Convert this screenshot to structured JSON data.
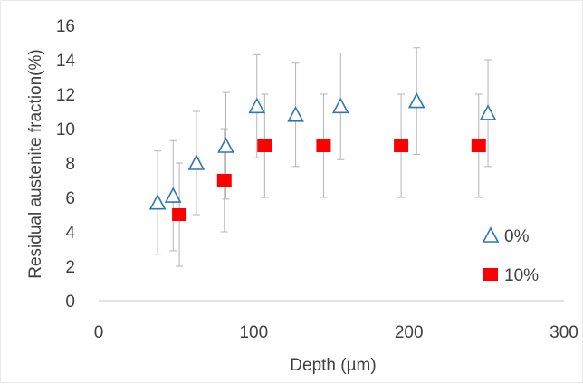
{
  "chart_data": {
    "type": "scatter",
    "title": "",
    "xlabel": "Depth (µm)",
    "ylabel": "Residual austenite fraction(%)",
    "xlim": [
      0,
      300
    ],
    "ylim": [
      0,
      16
    ],
    "xticks": [
      "0",
      "100",
      "200",
      "300"
    ],
    "yticks": [
      "0",
      "2",
      "4",
      "6",
      "8",
      "10",
      "12",
      "14",
      "16"
    ],
    "grid": false,
    "legend_position": "right",
    "series": [
      {
        "name": "0%",
        "marker": "triangle-open",
        "color": "#2e75b6",
        "points": [
          {
            "x": 38,
            "y": 5.7,
            "err": 3.0
          },
          {
            "x": 48,
            "y": 6.1,
            "err": 3.2
          },
          {
            "x": 63,
            "y": 8.0,
            "err": 3.0
          },
          {
            "x": 82,
            "y": 9.0,
            "err": 3.1
          },
          {
            "x": 102,
            "y": 11.3,
            "err": 3.0
          },
          {
            "x": 127,
            "y": 10.8,
            "err": 3.0
          },
          {
            "x": 156,
            "y": 11.3,
            "err": 3.1
          },
          {
            "x": 205,
            "y": 11.6,
            "err": 3.1
          },
          {
            "x": 251,
            "y": 10.9,
            "err": 3.1
          }
        ]
      },
      {
        "name": "10%",
        "marker": "square-filled",
        "color": "#ff0000",
        "points": [
          {
            "x": 52,
            "y": 5.0,
            "err": 3.0
          },
          {
            "x": 81,
            "y": 7.0,
            "err": 3.0
          },
          {
            "x": 107,
            "y": 9.0,
            "err": 3.0
          },
          {
            "x": 145,
            "y": 9.0,
            "err": 3.0
          },
          {
            "x": 195,
            "y": 9.0,
            "err": 3.0
          },
          {
            "x": 245,
            "y": 9.0,
            "err": 3.0
          }
        ]
      }
    ]
  }
}
